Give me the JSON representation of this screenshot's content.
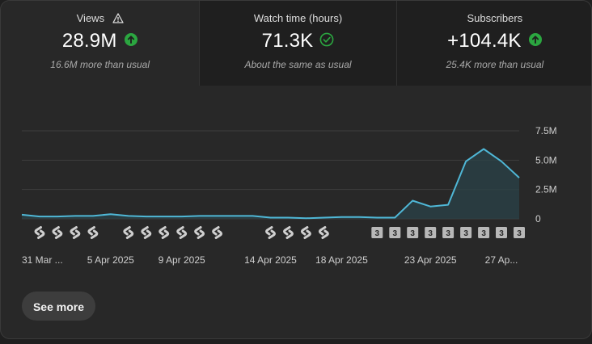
{
  "metrics": [
    {
      "label": "Views",
      "value": "28.9M",
      "status": "up",
      "note": "16.6M more than usual",
      "icon": "warning-icon"
    },
    {
      "label": "Watch time (hours)",
      "value": "71.3K",
      "status": "same",
      "note": "About the same as usual"
    },
    {
      "label": "Subscribers",
      "value": "+104.4K",
      "status": "up",
      "note": "25.4K more than usual"
    }
  ],
  "colors": {
    "line": "#4fb7d6",
    "area": "#2a4248",
    "up": "#2ba640",
    "same": "#2ba640"
  },
  "chart_data": {
    "type": "area",
    "y_ticks": [
      "7.5M",
      "5.0M",
      "2.5M",
      "0"
    ],
    "ylim": [
      0,
      7500000
    ],
    "grid": true,
    "x_tick_labels": [
      "31 Mar ...",
      "5 Apr 2025",
      "9 Apr 2025",
      "14 Apr 2025",
      "18 Apr 2025",
      "23 Apr 2025",
      "27 Ap..."
    ],
    "x": [
      "31 Mar",
      "1 Apr",
      "2 Apr",
      "3 Apr",
      "4 Apr",
      "5 Apr",
      "6 Apr",
      "7 Apr",
      "8 Apr",
      "9 Apr",
      "10 Apr",
      "11 Apr",
      "12 Apr",
      "13 Apr",
      "14 Apr",
      "15 Apr",
      "16 Apr",
      "17 Apr",
      "18 Apr",
      "19 Apr",
      "20 Apr",
      "21 Apr",
      "22 Apr",
      "23 Apr",
      "24 Apr",
      "25 Apr",
      "26 Apr",
      "27 Apr",
      "28 Apr"
    ],
    "series": [
      {
        "values": [
          350000,
          200000,
          200000,
          250000,
          250000,
          400000,
          250000,
          200000,
          200000,
          200000,
          250000,
          250000,
          250000,
          250000,
          100000,
          100000,
          50000,
          100000,
          150000,
          150000,
          100000,
          100000,
          1550000,
          1050000,
          1200000,
          4900000,
          5950000,
          4900000,
          3500000
        ]
      }
    ],
    "markers": [
      {
        "type": "shorts",
        "dates": [
          "1 Apr",
          "2 Apr",
          "3 Apr",
          "4 Apr",
          "6 Apr",
          "7 Apr",
          "8 Apr",
          "9 Apr",
          "10 Apr",
          "11 Apr",
          "14 Apr",
          "15 Apr",
          "16 Apr",
          "17 Apr"
        ]
      },
      {
        "type": "count",
        "label": "3",
        "dates": [
          "20 Apr",
          "21 Apr",
          "22 Apr",
          "23 Apr",
          "24 Apr",
          "25 Apr",
          "26 Apr",
          "27 Apr",
          "28 Apr"
        ]
      }
    ]
  },
  "see_more_label": "See more"
}
